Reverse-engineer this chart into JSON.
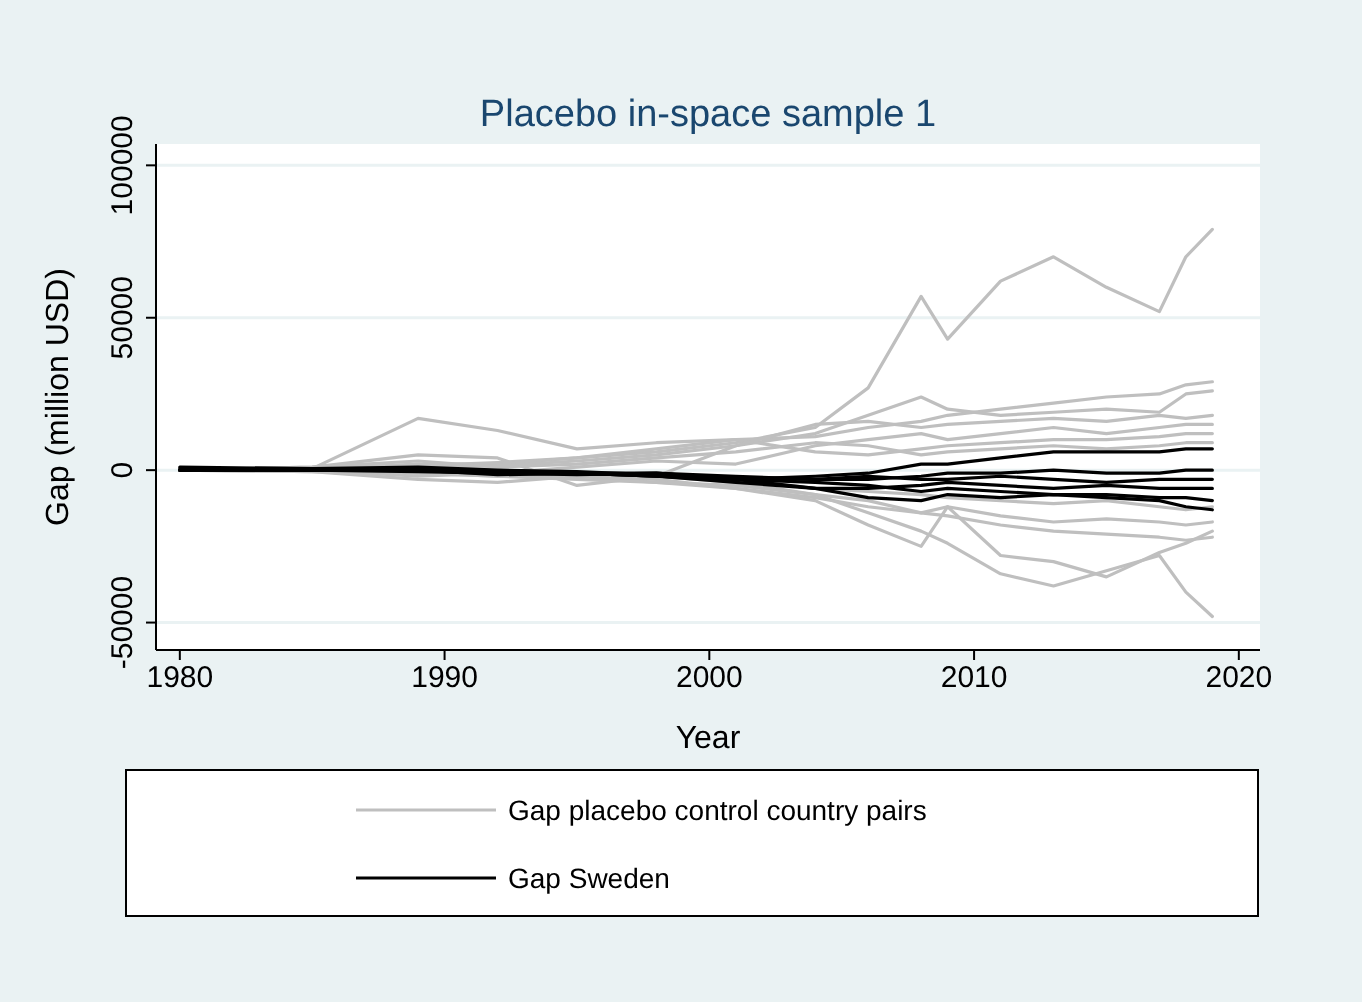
{
  "chart_data": {
    "type": "line",
    "title": "Placebo in-space sample 1",
    "xlabel": "Year",
    "ylabel": "Gap (million USD)",
    "x": [
      1980,
      1985,
      1989,
      1992,
      1995,
      1998,
      2001,
      2004,
      2006,
      2008,
      2009,
      2011,
      2013,
      2015,
      2017,
      2018,
      2019
    ],
    "xlim": [
      1979.1,
      2020.8
    ],
    "xticks": [
      1980,
      1990,
      2000,
      2010,
      2020
    ],
    "ylim": [
      -59000,
      107000
    ],
    "yticks": [
      {
        "value": -50000,
        "label": "-50000"
      },
      {
        "value": 0,
        "label": "0"
      },
      {
        "value": 50000,
        "label": "50000"
      },
      {
        "value": 100000,
        "label": "100000"
      }
    ],
    "grid": "y",
    "legend": "bottom",
    "line_style": "solid",
    "marker": "none",
    "series": [
      {
        "name": "Gap placebo control country pairs",
        "color": "#bfbfbf",
        "values": [
          0,
          500,
          1500,
          2500,
          4000,
          6000,
          9000,
          14000,
          27000,
          57000,
          43000,
          62000,
          70000,
          60000,
          52000,
          70000,
          79000
        ]
      },
      {
        "color": "#bfbfbf",
        "values": [
          0,
          -500,
          -1000,
          -2000,
          -1500,
          -2000,
          -4000,
          -8000,
          -14000,
          -20000,
          -24000,
          -34000,
          -38000,
          -33000,
          -28000,
          -40000,
          -48000
        ]
      },
      {
        "color": "#bfbfbf",
        "values": [
          0,
          500,
          17000,
          13000,
          7000,
          9000,
          10000,
          11000,
          14000,
          16000,
          18000,
          20000,
          22000,
          24000,
          25000,
          28000,
          29000
        ]
      },
      {
        "color": "#bfbfbf",
        "values": [
          0,
          1000,
          5000,
          4000,
          -5000,
          -2000,
          8000,
          12000,
          18000,
          24000,
          20000,
          18000,
          19000,
          20000,
          19000,
          25000,
          26000
        ]
      },
      {
        "color": "#bfbfbf",
        "values": [
          0,
          0,
          -2000,
          -1000,
          1000,
          3000,
          2000,
          8000,
          10000,
          12000,
          10000,
          12000,
          14000,
          12000,
          14000,
          15000,
          15000
        ]
      },
      {
        "color": "#bfbfbf",
        "values": [
          0,
          -500,
          -3000,
          -4000,
          -2000,
          -3000,
          -6000,
          -10000,
          -18000,
          -25000,
          -12000,
          -28000,
          -30000,
          -35000,
          -27000,
          -24000,
          -20000
        ]
      },
      {
        "color": "#bfbfbf",
        "values": [
          0,
          0,
          1000,
          0,
          -2000,
          -4000,
          -6000,
          -9000,
          -12000,
          -14000,
          -12000,
          -15000,
          -17000,
          -16000,
          -17000,
          -18000,
          -17000
        ]
      },
      {
        "color": "#bfbfbf",
        "values": [
          0,
          500,
          2000,
          2000,
          4000,
          7000,
          10000,
          6000,
          5000,
          7000,
          8000,
          9000,
          10000,
          10000,
          11000,
          12000,
          12000
        ]
      },
      {
        "color": "#bfbfbf",
        "values": [
          0,
          0,
          -1000,
          -2000,
          -3000,
          -4000,
          -5000,
          -8000,
          -10000,
          -14000,
          -15000,
          -18000,
          -20000,
          -21000,
          -22000,
          -23000,
          -22000
        ]
      },
      {
        "color": "#bfbfbf",
        "values": [
          0,
          1000,
          3000,
          1000,
          2000,
          4000,
          6000,
          9000,
          8000,
          5000,
          6000,
          7000,
          8000,
          7000,
          8000,
          9000,
          9000
        ]
      },
      {
        "color": "#bfbfbf",
        "values": [
          0,
          -300,
          -500,
          -1000,
          -2000,
          -1000,
          -3000,
          -6000,
          -7000,
          -8000,
          -9000,
          -10000,
          -11000,
          -10000,
          -12000,
          -13000,
          -12000
        ]
      },
      {
        "color": "#bfbfbf",
        "values": [
          0,
          200,
          800,
          1500,
          3000,
          5000,
          8000,
          15000,
          16000,
          14000,
          15000,
          16000,
          17000,
          16000,
          18000,
          17000,
          18000
        ]
      },
      {
        "name": "Gap Sweden",
        "color": "#000000",
        "values": [
          0,
          0,
          500,
          -1000,
          -1000,
          -2000,
          -3000,
          -2000,
          -1000,
          2000,
          2000,
          4000,
          6000,
          6000,
          6000,
          7000,
          7000
        ]
      },
      {
        "color": "#000000",
        "values": [
          1000,
          500,
          0,
          -1500,
          -1000,
          -1000,
          -2000,
          -3000,
          -3000,
          -2000,
          -1000,
          -1000,
          0,
          -1000,
          -1000,
          0,
          0
        ]
      },
      {
        "color": "#000000",
        "values": [
          0,
          0,
          0,
          -1000,
          -1500,
          -1000,
          -3000,
          -6000,
          -9000,
          -10000,
          -8000,
          -9000,
          -8000,
          -9000,
          -10000,
          -12000,
          -13000
        ]
      },
      {
        "color": "#000000",
        "values": [
          500,
          0,
          -500,
          -1000,
          -1000,
          -2000,
          -4000,
          -6000,
          -6000,
          -5000,
          -4000,
          -5000,
          -6000,
          -5000,
          -6000,
          -6000,
          -6000
        ]
      },
      {
        "color": "#000000",
        "values": [
          0,
          500,
          1000,
          0,
          -500,
          -1500,
          -2500,
          -3000,
          -2000,
          -3000,
          -3000,
          -2000,
          -3000,
          -4000,
          -3000,
          -3000,
          -3000
        ]
      },
      {
        "color": "#000000",
        "values": [
          0,
          0,
          0,
          -500,
          -1000,
          -2000,
          -3000,
          -4000,
          -5000,
          -7000,
          -6000,
          -7000,
          -8000,
          -8000,
          -9000,
          -9000,
          -10000
        ]
      }
    ]
  }
}
